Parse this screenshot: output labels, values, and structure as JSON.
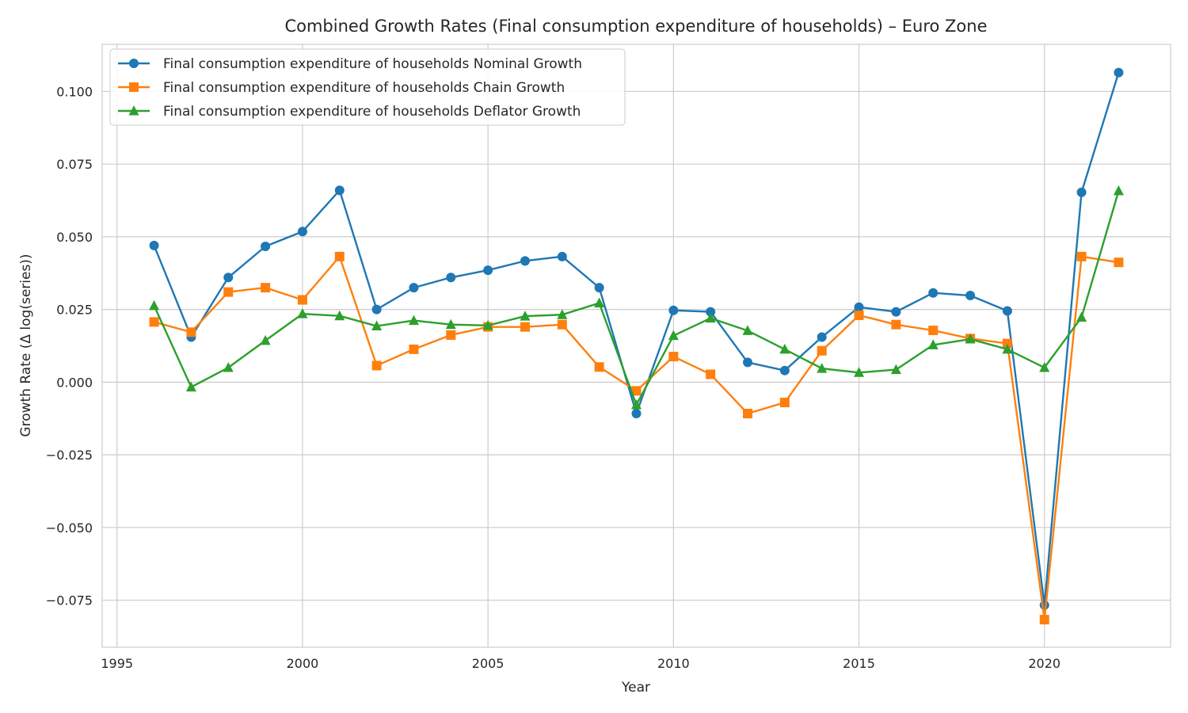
{
  "chart_data": {
    "type": "line",
    "title": "Combined Growth Rates (Final consumption expenditure of households) – Euro Zone",
    "xlabel": "Year",
    "ylabel": "Growth Rate (Δ log(series))",
    "xlim": [
      1994.6,
      2023.4
    ],
    "ylim": [
      -0.0912,
      0.1162
    ],
    "grid": true,
    "legend_position": "top-left",
    "x_ticks": [
      1995,
      2000,
      2005,
      2010,
      2015,
      2020
    ],
    "x_tick_labels": [
      "1995",
      "2000",
      "2005",
      "2010",
      "2015",
      "2020"
    ],
    "y_ticks": [
      -0.075,
      -0.05,
      -0.025,
      0.0,
      0.025,
      0.05,
      0.075,
      0.1
    ],
    "y_tick_labels": [
      "−0.075",
      "−0.050",
      "−0.025",
      "0.000",
      "0.025",
      "0.050",
      "0.075",
      "0.100"
    ],
    "x": [
      1996,
      1997,
      1998,
      1999,
      2000,
      2001,
      2002,
      2003,
      2004,
      2005,
      2006,
      2007,
      2008,
      2009,
      2010,
      2011,
      2012,
      2013,
      2014,
      2015,
      2016,
      2017,
      2018,
      2019,
      2020,
      2021,
      2022
    ],
    "series": [
      {
        "name": "Final consumption expenditure of households Nominal Growth",
        "color": "#1f77b4",
        "marker": "circle",
        "values": [
          0.047,
          0.0155,
          0.036,
          0.0467,
          0.0518,
          0.066,
          0.025,
          0.0325,
          0.036,
          0.0385,
          0.0417,
          0.0432,
          0.0325,
          -0.0108,
          0.0247,
          0.0242,
          0.0068,
          0.004,
          0.0155,
          0.0258,
          0.0242,
          0.0307,
          0.0298,
          0.0245,
          -0.0767,
          0.0653,
          0.1065
        ]
      },
      {
        "name": "Final consumption expenditure of households Chain Growth",
        "color": "#ff7f0e",
        "marker": "square",
        "values": [
          0.0207,
          0.0172,
          0.031,
          0.0325,
          0.0283,
          0.0432,
          0.0057,
          0.0113,
          0.0162,
          0.019,
          0.019,
          0.0198,
          0.0052,
          -0.003,
          0.0088,
          0.0027,
          -0.0108,
          -0.007,
          0.0108,
          0.023,
          0.0198,
          0.0178,
          0.015,
          0.0133,
          -0.0817,
          0.0432,
          0.0412
        ]
      },
      {
        "name": "Final consumption expenditure of households Deflator Growth",
        "color": "#2ca02c",
        "marker": "triangle",
        "values": [
          0.0263,
          -0.0017,
          0.005,
          0.0143,
          0.0235,
          0.0228,
          0.0193,
          0.0212,
          0.0198,
          0.0195,
          0.0227,
          0.0232,
          0.0272,
          -0.0078,
          0.016,
          0.022,
          0.0177,
          0.0113,
          0.0047,
          0.0033,
          0.0043,
          0.0128,
          0.0148,
          0.0113,
          0.005,
          0.0223,
          0.0658
        ]
      }
    ]
  }
}
